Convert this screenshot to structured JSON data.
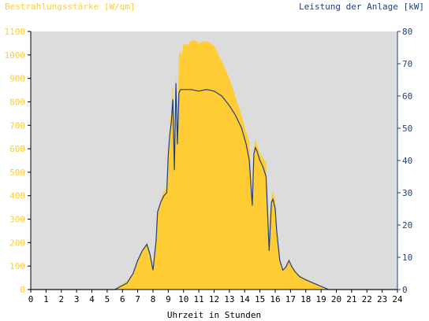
{
  "chart_data": {
    "type": "area",
    "title_left": "Bestrahlungsstärke [W/qm]",
    "title_right": "Leistung der Anlage [kW]",
    "xlabel": "Uhrzeit in Stunden",
    "xlim": [
      0,
      24
    ],
    "x_ticks": [
      "0",
      "1",
      "2",
      "3",
      "4",
      "5",
      "6",
      "7",
      "8",
      "9",
      "10",
      "11",
      "12",
      "13",
      "14",
      "15",
      "16",
      "17",
      "18",
      "19",
      "20",
      "21",
      "22",
      "23",
      "24"
    ],
    "y_left_lim": [
      0,
      1100
    ],
    "y_left_ticks": [
      "0",
      "100",
      "200",
      "300",
      "400",
      "500",
      "600",
      "700",
      "800",
      "900",
      "1000",
      "1100"
    ],
    "y_right_lim": [
      0,
      80
    ],
    "y_right_ticks": [
      "0",
      "10",
      "20",
      "30",
      "40",
      "50",
      "60",
      "70",
      "80"
    ],
    "colors": {
      "plot_bg": "#dcdcdc",
      "irradiance": "#ffcc33",
      "power": "#1f3f7f",
      "left_axis_text": "#ffcc33",
      "right_axis_text": "#1f3f7f",
      "axis": "#000000"
    },
    "series": [
      {
        "name": "Bestrahlungsstärke [W/qm]",
        "axis": "left",
        "style": "area",
        "x": [
          0,
          5.5,
          5.9,
          6.3,
          6.7,
          7.0,
          7.3,
          7.6,
          7.8,
          8.0,
          8.2,
          8.3,
          8.5,
          8.7,
          8.9,
          9.0,
          9.1,
          9.2,
          9.3,
          9.4,
          9.5,
          9.6,
          9.7,
          9.8,
          9.9,
          10.0,
          10.2,
          10.5,
          10.8,
          11.0,
          11.5,
          12.0,
          12.3,
          12.6,
          13.0,
          13.4,
          13.8,
          14.1,
          14.3,
          14.5,
          14.6,
          14.7,
          14.8,
          15.0,
          15.2,
          15.4,
          15.6,
          15.75,
          15.85,
          16.0,
          16.1,
          16.3,
          16.5,
          16.7,
          16.9,
          17.1,
          17.3,
          17.6,
          18.0,
          18.5,
          19.0,
          19.5,
          20,
          24
        ],
        "y": [
          0,
          0,
          20,
          35,
          70,
          130,
          170,
          200,
          160,
          100,
          220,
          320,
          380,
          420,
          430,
          560,
          700,
          760,
          880,
          600,
          930,
          650,
          1000,
          1020,
          1000,
          1050,
          1040,
          1060,
          1060,
          1050,
          1060,
          1040,
          1000,
          960,
          900,
          820,
          740,
          670,
          630,
          400,
          600,
          640,
          620,
          580,
          560,
          540,
          240,
          400,
          420,
          380,
          280,
          120,
          80,
          100,
          130,
          100,
          80,
          60,
          45,
          30,
          10,
          0,
          0,
          0
        ]
      },
      {
        "name": "Leistung der Anlage [kW]",
        "axis": "right",
        "style": "line",
        "x": [
          0,
          5.5,
          5.9,
          6.3,
          6.7,
          7.0,
          7.3,
          7.6,
          7.8,
          8.0,
          8.2,
          8.3,
          8.5,
          8.7,
          8.9,
          9.0,
          9.1,
          9.2,
          9.3,
          9.4,
          9.5,
          9.6,
          9.7,
          9.8,
          10.0,
          10.5,
          11.0,
          11.5,
          12.0,
          12.5,
          13.0,
          13.4,
          13.8,
          14.1,
          14.3,
          14.5,
          14.6,
          14.7,
          14.8,
          15.0,
          15.2,
          15.4,
          15.6,
          15.75,
          15.85,
          16.0,
          16.1,
          16.3,
          16.5,
          16.7,
          16.9,
          17.1,
          17.3,
          17.6,
          18.0,
          18.5,
          19.0,
          19.5,
          20,
          24
        ],
        "y": [
          0,
          0,
          1,
          2,
          5,
          9,
          12,
          14,
          11,
          6,
          15,
          24,
          27,
          29,
          30,
          42,
          48,
          52,
          59,
          37,
          64,
          45,
          61,
          62,
          62,
          62,
          61.5,
          62,
          61.5,
          60,
          57,
          54,
          50,
          45,
          40,
          26,
          42,
          44,
          43,
          40,
          38,
          35,
          12,
          27,
          28,
          25,
          18,
          9,
          6,
          7,
          9,
          7,
          5.5,
          4,
          3,
          2,
          1,
          0,
          0,
          0
        ]
      }
    ]
  }
}
